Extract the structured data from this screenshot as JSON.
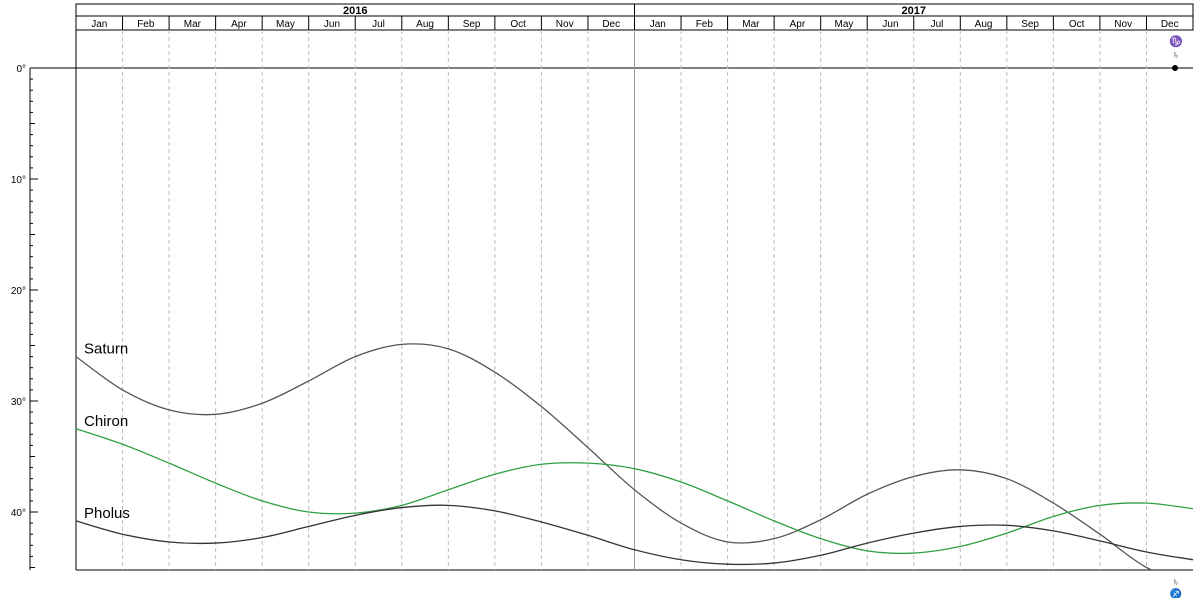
{
  "chart_data": {
    "type": "line",
    "years": [
      {
        "label": "2016",
        "start_month": 0
      },
      {
        "label": "2017",
        "start_month": 12
      }
    ],
    "months": [
      "Jan",
      "Feb",
      "Mar",
      "Apr",
      "May",
      "Jun",
      "Jul",
      "Aug",
      "Sep",
      "Oct",
      "Nov",
      "Dec",
      "Jan",
      "Feb",
      "Mar",
      "Apr",
      "May",
      "Jun",
      "Jul",
      "Aug",
      "Sep",
      "Oct",
      "Nov",
      "Dec"
    ],
    "y_ticks": [
      {
        "value": 0,
        "label": "0°"
      },
      {
        "value": 10,
        "label": "10°"
      },
      {
        "value": 20,
        "label": "20°"
      },
      {
        "value": 30,
        "label": "30°"
      },
      {
        "value": 40,
        "label": "40°"
      }
    ],
    "ylim": [
      0,
      45
    ],
    "xlim": [
      0,
      24
    ],
    "grid": "monthly dashed vertical",
    "series": [
      {
        "name": "Saturn",
        "color": "#555555",
        "x": [
          0,
          1,
          2,
          3,
          4,
          5,
          6,
          7,
          8,
          9,
          10,
          11,
          12,
          13,
          14,
          15,
          16,
          17,
          18,
          19,
          20,
          21,
          22,
          23,
          24
        ],
        "y": [
          26.0,
          29.0,
          30.8,
          31.2,
          30.2,
          28.2,
          26.0,
          24.9,
          25.3,
          27.4,
          30.5,
          34.2,
          38.0,
          41.0,
          42.7,
          42.4,
          40.7,
          38.4,
          36.8,
          36.2,
          37.0,
          39.2,
          42.0,
          45.0,
          46.5
        ]
      },
      {
        "name": "Chiron",
        "color": "#2ea043",
        "x": [
          0,
          1,
          2,
          3,
          4,
          5,
          6,
          7,
          8,
          9,
          10,
          11,
          12,
          13,
          14,
          15,
          16,
          17,
          18,
          19,
          20,
          21,
          22,
          23,
          24
        ],
        "y": [
          32.5,
          33.9,
          35.6,
          37.4,
          39.0,
          40.0,
          40.1,
          39.4,
          38.0,
          36.6,
          35.7,
          35.6,
          36.1,
          37.3,
          39.0,
          40.8,
          42.4,
          43.5,
          43.7,
          43.1,
          41.9,
          40.4,
          39.4,
          39.2,
          39.7
        ]
      },
      {
        "name": "Pholus",
        "color": "#333333",
        "x": [
          0,
          1,
          2,
          3,
          4,
          5,
          6,
          7,
          8,
          9,
          10,
          11,
          12,
          13,
          14,
          15,
          16,
          17,
          18,
          19,
          20,
          21,
          22,
          23,
          24
        ],
        "y": [
          40.8,
          42.0,
          42.7,
          42.8,
          42.3,
          41.3,
          40.3,
          39.6,
          39.4,
          39.9,
          40.9,
          42.1,
          43.4,
          44.3,
          44.7,
          44.6,
          43.9,
          42.8,
          41.9,
          41.3,
          41.2,
          41.7,
          42.6,
          43.6,
          44.3
        ]
      }
    ],
    "annotations": {
      "saturn_glyph": "♄",
      "capricorn_glyph": "♑",
      "sagittarius_glyph": "♐"
    }
  }
}
